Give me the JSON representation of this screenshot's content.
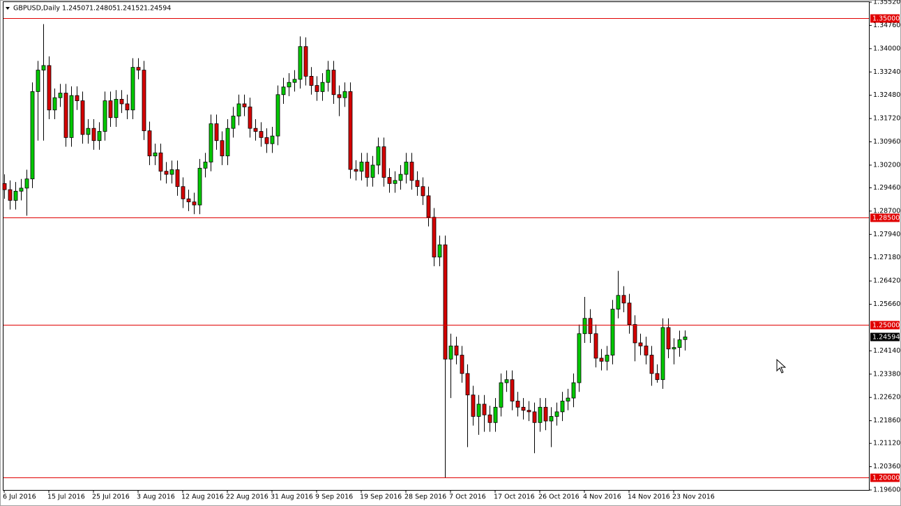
{
  "chart_data": {
    "type": "candlestick",
    "symbol": "GBPUSD,Daily",
    "up_color": "#00c800",
    "down_color": "#d40000",
    "line_color": "#e00000",
    "ylim": [
      1.196,
      1.3552
    ],
    "yticks": [
      {
        "value": 1.3552,
        "label": "1.35520"
      },
      {
        "value": 1.3476,
        "label": "1.34760"
      },
      {
        "value": 1.34,
        "label": "1.34000"
      },
      {
        "value": 1.3324,
        "label": "1.33240"
      },
      {
        "value": 1.3248,
        "label": "1.32480"
      },
      {
        "value": 1.3172,
        "label": "1.31720"
      },
      {
        "value": 1.3096,
        "label": "1.30960"
      },
      {
        "value": 1.302,
        "label": "1.30200"
      },
      {
        "value": 1.2946,
        "label": "1.29460"
      },
      {
        "value": 1.287,
        "label": "1.28700"
      },
      {
        "value": 1.2794,
        "label": "1.27940"
      },
      {
        "value": 1.2718,
        "label": "1.27180"
      },
      {
        "value": 1.2642,
        "label": "1.26420"
      },
      {
        "value": 1.2566,
        "label": "1.25660"
      },
      {
        "value": 1.2414,
        "label": "1.24140"
      },
      {
        "value": 1.2338,
        "label": "1.23380"
      },
      {
        "value": 1.2262,
        "label": "1.22620"
      },
      {
        "value": 1.2186,
        "label": "1.21860"
      },
      {
        "value": 1.2112,
        "label": "1.21120"
      },
      {
        "value": 1.2036,
        "label": "1.20360"
      },
      {
        "value": 1.196,
        "label": "1.19600"
      }
    ],
    "levels": [
      {
        "value": 1.35,
        "label": "1.35000"
      },
      {
        "value": 1.285,
        "label": "1.28500"
      },
      {
        "value": 1.25,
        "label": "1.25000"
      },
      {
        "value": 1.2,
        "label": "1.20000"
      }
    ],
    "categories": [
      "6 Jul 2016",
      null,
      null,
      null,
      null,
      null,
      null,
      null,
      "15 Jul 2016",
      null,
      null,
      null,
      null,
      null,
      null,
      null,
      "25 Jul 2016",
      null,
      null,
      null,
      null,
      null,
      null,
      null,
      "3 Aug 2016",
      null,
      null,
      null,
      null,
      null,
      null,
      null,
      "12 Aug 2016",
      null,
      null,
      null,
      null,
      null,
      null,
      null,
      "22 Aug 2016",
      null,
      null,
      null,
      null,
      null,
      null,
      null,
      "31 Aug 2016",
      null,
      null,
      null,
      null,
      null,
      null,
      null,
      "9 Sep 2016",
      null,
      null,
      null,
      null,
      null,
      null,
      null,
      "19 Sep 2016",
      null,
      null,
      null,
      null,
      null,
      null,
      null,
      "28 Sep 2016",
      null,
      null,
      null,
      null,
      null,
      null,
      null,
      "7 Oct 2016",
      null,
      null,
      null,
      null,
      null,
      null,
      null,
      "17 Oct 2016",
      null,
      null,
      null,
      null,
      null,
      null,
      null,
      "26 Oct 2016",
      null,
      null,
      null,
      null,
      null,
      null,
      null,
      "4 Nov 2016",
      null,
      null,
      null,
      null,
      null,
      null,
      null,
      "14 Nov 2016",
      null,
      null,
      null,
      null,
      null,
      null,
      null,
      "23 Nov 2016",
      null,
      null
    ],
    "open": [
      1.296,
      1.294,
      1.2905,
      1.2935,
      1.2945,
      1.2975,
      1.326,
      1.333,
      1.3345,
      1.32,
      1.324,
      1.3255,
      1.311,
      1.3247,
      1.323,
      1.312,
      1.314,
      1.31,
      1.313,
      1.323,
      1.3175,
      1.3235,
      1.322,
      1.32,
      1.3339,
      1.333,
      1.3132,
      1.305,
      1.306,
      1.3,
      1.299,
      1.3005,
      1.295,
      1.291,
      1.29,
      1.289,
      1.301,
      1.303,
      1.3155,
      1.31,
      1.305,
      1.314,
      1.318,
      1.322,
      1.321,
      1.314,
      1.313,
      1.311,
      1.309,
      1.3115,
      1.325,
      1.3275,
      1.329,
      1.33,
      1.3407,
      1.331,
      1.328,
      1.326,
      1.329,
      1.333,
      1.325,
      1.324,
      1.326,
      1.3006,
      1.3,
      1.303,
      1.298,
      1.302,
      1.308,
      1.298,
      1.296,
      1.297,
      1.299,
      1.303,
      1.297,
      1.295,
      1.292,
      1.285,
      1.272,
      1.276,
      1.2387,
      1.243,
      1.24,
      1.234,
      1.227,
      1.22,
      1.224,
      1.2205,
      1.218,
      1.223,
      1.231,
      1.232,
      1.225,
      1.223,
      1.222,
      1.2215,
      1.218,
      1.223,
      1.2185,
      1.22,
      1.2215,
      1.225,
      1.226,
      1.231,
      1.247,
      1.252,
      1.247,
      1.239,
      1.238,
      1.24,
      1.255,
      1.2595,
      1.257,
      1.25,
      1.244,
      1.243,
      1.24,
      1.234,
      1.232,
      1.249,
      1.242,
      1.2425,
      1.24507
    ],
    "high": [
      1.299,
      1.297,
      1.2965,
      1.2975,
      1.3005,
      1.329,
      1.336,
      1.348,
      1.3375,
      1.327,
      1.3285,
      1.3285,
      1.3277,
      1.3277,
      1.326,
      1.317,
      1.317,
      1.316,
      1.326,
      1.326,
      1.3265,
      1.3265,
      1.325,
      1.3369,
      1.3369,
      1.336,
      1.3162,
      1.309,
      1.309,
      1.303,
      1.3035,
      1.3035,
      1.298,
      1.294,
      1.293,
      1.304,
      1.306,
      1.3185,
      1.3185,
      1.313,
      1.317,
      1.321,
      1.325,
      1.325,
      1.324,
      1.317,
      1.316,
      1.314,
      1.3145,
      1.328,
      1.3305,
      1.332,
      1.333,
      1.344,
      1.3437,
      1.334,
      1.331,
      1.332,
      1.336,
      1.336,
      1.328,
      1.329,
      1.329,
      1.3036,
      1.306,
      1.306,
      1.305,
      1.311,
      1.311,
      1.301,
      1.3,
      1.302,
      1.306,
      1.306,
      1.3,
      1.298,
      1.295,
      1.288,
      1.279,
      1.279,
      1.247,
      1.246,
      1.243,
      1.237,
      1.23,
      1.227,
      1.227,
      1.2235,
      1.226,
      1.234,
      1.235,
      1.235,
      1.228,
      1.226,
      1.225,
      1.2245,
      1.226,
      1.226,
      1.223,
      1.2245,
      1.228,
      1.229,
      1.234,
      1.25,
      1.259,
      1.255,
      1.25,
      1.242,
      1.243,
      1.258,
      1.2675,
      1.2625,
      1.26,
      1.253,
      1.247,
      1.246,
      1.243,
      1.237,
      1.252,
      1.252,
      1.2455,
      1.248,
      1.24805
    ],
    "low": [
      1.291,
      1.2875,
      1.2875,
      1.2905,
      1.2855,
      1.2945,
      1.31,
      1.31,
      1.317,
      1.317,
      1.321,
      1.308,
      1.308,
      1.32,
      1.309,
      1.309,
      1.307,
      1.307,
      1.31,
      1.3145,
      1.3145,
      1.319,
      1.317,
      1.317,
      1.33,
      1.3102,
      1.302,
      1.302,
      1.297,
      1.296,
      1.296,
      1.292,
      1.288,
      1.287,
      1.286,
      1.286,
      1.298,
      1.3,
      1.307,
      1.302,
      1.302,
      1.311,
      1.315,
      1.318,
      1.311,
      1.31,
      1.308,
      1.306,
      1.306,
      1.3085,
      1.322,
      1.3245,
      1.326,
      1.327,
      1.328,
      1.325,
      1.323,
      1.323,
      1.326,
      1.322,
      1.318,
      1.321,
      1.2976,
      1.297,
      1.297,
      1.295,
      1.295,
      1.299,
      1.295,
      1.293,
      1.293,
      1.294,
      1.296,
      1.294,
      1.292,
      1.289,
      1.282,
      1.269,
      1.269,
      1.2,
      1.226,
      1.237,
      1.231,
      1.21,
      1.217,
      1.214,
      1.215,
      1.215,
      1.215,
      1.22,
      1.228,
      1.222,
      1.22,
      1.219,
      1.2185,
      1.208,
      1.215,
      1.2155,
      1.21,
      1.217,
      1.2185,
      1.222,
      1.223,
      1.228,
      1.244,
      1.244,
      1.236,
      1.235,
      1.235,
      1.237,
      1.252,
      1.254,
      1.247,
      1.238,
      1.24,
      1.237,
      1.23,
      1.231,
      1.229,
      1.239,
      1.237,
      1.2395,
      1.24152
    ],
    "close": [
      1.294,
      1.2905,
      1.2935,
      1.2945,
      1.2975,
      1.326,
      1.333,
      1.3345,
      1.32,
      1.324,
      1.3255,
      1.311,
      1.3247,
      1.323,
      1.312,
      1.314,
      1.31,
      1.313,
      1.323,
      1.3175,
      1.3235,
      1.322,
      1.32,
      1.3339,
      1.333,
      1.3132,
      1.305,
      1.306,
      1.3,
      1.299,
      1.3005,
      1.295,
      1.291,
      1.29,
      1.289,
      1.301,
      1.303,
      1.3155,
      1.31,
      1.305,
      1.314,
      1.318,
      1.322,
      1.321,
      1.314,
      1.313,
      1.311,
      1.309,
      1.3115,
      1.325,
      1.3275,
      1.329,
      1.33,
      1.3407,
      1.331,
      1.328,
      1.326,
      1.329,
      1.333,
      1.325,
      1.324,
      1.326,
      1.3006,
      1.3,
      1.303,
      1.298,
      1.302,
      1.308,
      1.298,
      1.296,
      1.297,
      1.299,
      1.303,
      1.297,
      1.295,
      1.292,
      1.285,
      1.272,
      1.276,
      1.2387,
      1.243,
      1.24,
      1.234,
      1.227,
      1.22,
      1.224,
      1.2205,
      1.218,
      1.223,
      1.231,
      1.232,
      1.225,
      1.223,
      1.222,
      1.2215,
      1.218,
      1.223,
      1.2185,
      1.22,
      1.2215,
      1.225,
      1.226,
      1.231,
      1.247,
      1.252,
      1.247,
      1.239,
      1.238,
      1.24,
      1.255,
      1.2595,
      1.257,
      1.25,
      1.244,
      1.243,
      1.24,
      1.234,
      1.232,
      1.249,
      1.242,
      1.2425,
      1.245,
      1.24594
    ]
  }
}
